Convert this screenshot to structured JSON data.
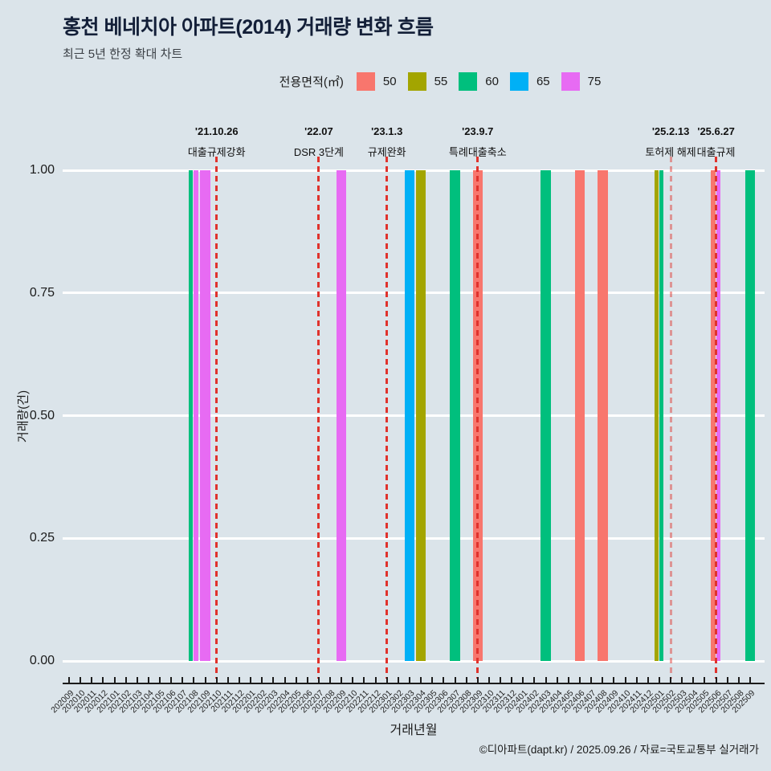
{
  "title": "홍천 베네치아 아파트(2014) 거래량 변화 흐름",
  "subtitle": "최근 5년 한정 확대 차트",
  "legend": {
    "title": "전용면적(㎡)",
    "items": [
      {
        "label": "50",
        "color": "#F8766D"
      },
      {
        "label": "55",
        "color": "#A3A500"
      },
      {
        "label": "60",
        "color": "#00BF7D"
      },
      {
        "label": "65",
        "color": "#00B0F6"
      },
      {
        "label": "75",
        "color": "#E76BF3"
      }
    ]
  },
  "y_axis": {
    "title": "거래량(건)",
    "ticks": [
      "0.00",
      "0.25",
      "0.50",
      "0.75",
      "1.00"
    ]
  },
  "x_axis": {
    "title": "거래년월",
    "months": [
      "202009",
      "202010",
      "202011",
      "202012",
      "202101",
      "202102",
      "202103",
      "202104",
      "202105",
      "202106",
      "202107",
      "202108",
      "202109",
      "202110",
      "202111",
      "202112",
      "202201",
      "202202",
      "202203",
      "202204",
      "202205",
      "202206",
      "202207",
      "202208",
      "202209",
      "202210",
      "202211",
      "202212",
      "202301",
      "202302",
      "202303",
      "202304",
      "202305",
      "202306",
      "202307",
      "202308",
      "202309",
      "202310",
      "202311",
      "202312",
      "202401",
      "202402",
      "202403",
      "202404",
      "202405",
      "202406",
      "202407",
      "202408",
      "202409",
      "202410",
      "202411",
      "202412",
      "202501",
      "202502",
      "202503",
      "202504",
      "202505",
      "202506",
      "202507",
      "202508",
      "202509"
    ]
  },
  "footer": "©디아파트(dapt.kr) / 2025.09.26 / 자료=국토교통부 실거래가",
  "chart_data": {
    "type": "bar",
    "title": "홍천 베네치아 아파트(2014) 거래량 변화 흐름",
    "xlabel": "거래년월",
    "ylabel": "거래량(건)",
    "ylim": [
      0,
      1
    ],
    "y_gridlines": [
      0,
      0.25,
      0.5,
      0.75,
      1.0
    ],
    "legend_position": "top-center",
    "grid": "horizontal-white",
    "series_key": "전용면적(㎡)",
    "colors": {
      "50": "#F8766D",
      "55": "#A3A500",
      "60": "#00BF7D",
      "65": "#00B0F6",
      "75": "#E76BF3"
    },
    "bars": [
      {
        "month": "202108",
        "segments": [
          {
            "area": "60",
            "value": 1
          },
          {
            "area": "75",
            "value": 1
          }
        ]
      },
      {
        "month": "202109",
        "segments": [
          {
            "area": "75",
            "value": 1
          }
        ]
      },
      {
        "month": "202209",
        "segments": [
          {
            "area": "75",
            "value": 1
          }
        ]
      },
      {
        "month": "202303",
        "segments": [
          {
            "area": "65",
            "value": 1
          }
        ]
      },
      {
        "month": "202304",
        "segments": [
          {
            "area": "55",
            "value": 1
          }
        ]
      },
      {
        "month": "202307",
        "segments": [
          {
            "area": "60",
            "value": 1
          }
        ]
      },
      {
        "month": "202309",
        "segments": [
          {
            "area": "50",
            "value": 1
          }
        ]
      },
      {
        "month": "202403",
        "segments": [
          {
            "area": "60",
            "value": 1
          }
        ]
      },
      {
        "month": "202406",
        "segments": [
          {
            "area": "50",
            "value": 1
          }
        ]
      },
      {
        "month": "202408",
        "segments": [
          {
            "area": "50",
            "value": 1
          }
        ]
      },
      {
        "month": "202501",
        "segments": [
          {
            "area": "55",
            "value": 1
          },
          {
            "area": "60",
            "value": 1
          }
        ]
      },
      {
        "month": "202506",
        "segments": [
          {
            "area": "50",
            "value": 1
          },
          {
            "area": "75",
            "value": 1
          }
        ]
      },
      {
        "month": "202509",
        "segments": [
          {
            "area": "60",
            "value": 1
          }
        ]
      }
    ],
    "events": [
      {
        "date": "'21.10.26",
        "label": "대출규제강화",
        "month": "202110",
        "line_color": "#e0322c",
        "light": false
      },
      {
        "date": "'22.07",
        "label": "DSR 3단계",
        "month": "202207",
        "line_color": "#e0322c",
        "light": false
      },
      {
        "date": "'23.1.3",
        "label": "규제완화",
        "month": "202301",
        "line_color": "#e0322c",
        "light": false
      },
      {
        "date": "'23.9.7",
        "label": "특례대출축소",
        "month": "202309",
        "line_color": "#e0322c",
        "light": false
      },
      {
        "date": "'25.2.13",
        "label": "토허제 해제",
        "month": "202502",
        "line_color": "#e0322c",
        "light": true
      },
      {
        "date": "'25.6.27",
        "label": "대출규제",
        "month": "202506",
        "line_color": "#e0322c",
        "light": false
      }
    ]
  }
}
